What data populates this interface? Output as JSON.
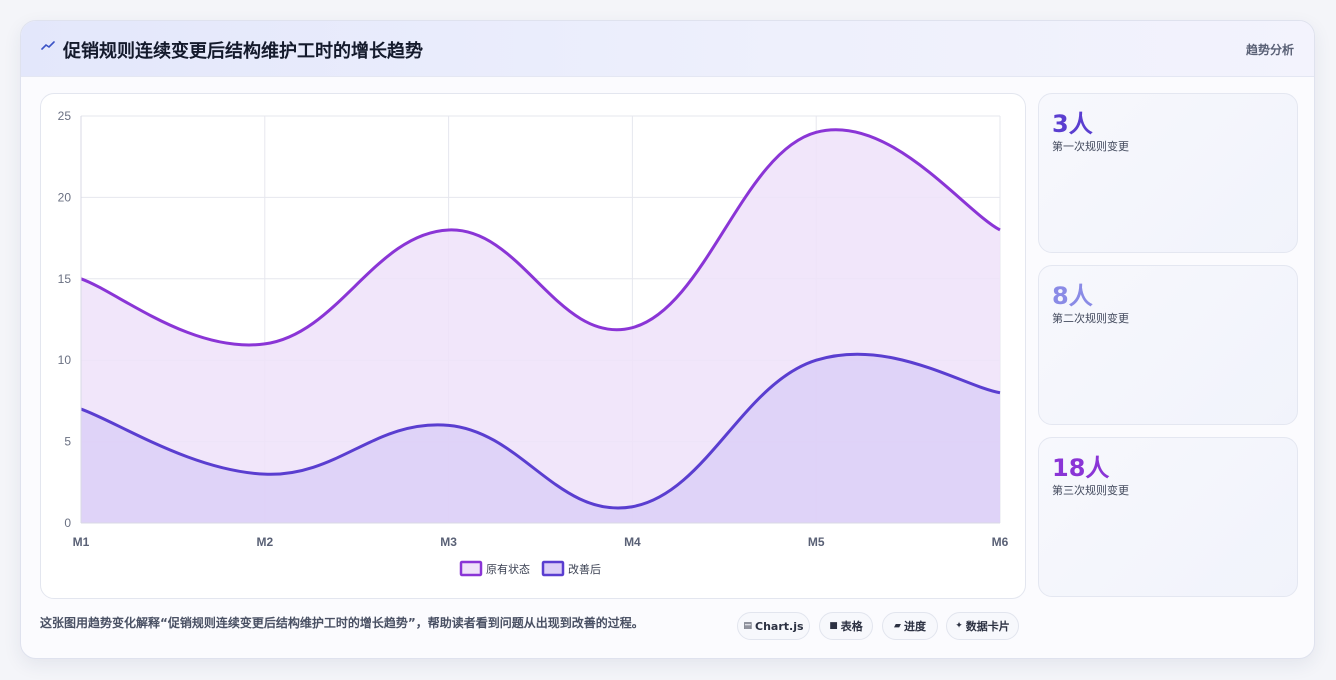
{
  "header": {
    "title": "促销规则连续变更后结构维护工时的增长趋势",
    "tag": "趋势分析",
    "icon": "trend-icon"
  },
  "chart_data": {
    "type": "area",
    "categories": [
      "M1",
      "M2",
      "M3",
      "M4",
      "M5",
      "M6"
    ],
    "series": [
      {
        "name": "原有状态",
        "values": [
          15,
          11,
          18,
          12,
          24,
          18
        ],
        "color": "#8a35d6",
        "fill": "#efe2f9"
      },
      {
        "name": "改善后",
        "values": [
          7,
          3,
          6,
          1,
          10,
          8
        ],
        "color": "#5a3ed0",
        "fill": "#dccff7"
      }
    ],
    "ylim": [
      0,
      25
    ],
    "yticks": [
      0,
      5,
      10,
      15,
      20,
      25
    ],
    "grid": true,
    "legend": "bottom"
  },
  "stats": [
    {
      "value": "3人",
      "label": "第一次规则变更",
      "color": "#5a3ed0"
    },
    {
      "value": "8人",
      "label": "第二次规则变更",
      "color": "#8a8be6"
    },
    {
      "value": "18人",
      "label": "第三次规则变更",
      "color": "#8a35d6"
    }
  ],
  "footer": {
    "text": "这张图用趋势变化解释“促销规则连续变更后结构维护工时的增长趋势”，帮助读者看到问题从出现到改善的过程。",
    "chips": [
      {
        "icon": "chart-icon",
        "glyph": "▤",
        "label": "Chart.js"
      },
      {
        "icon": "table-icon",
        "glyph": "■",
        "label": "表格"
      },
      {
        "icon": "progress-icon",
        "glyph": "▰",
        "label": "进度"
      },
      {
        "icon": "sparkle-icon",
        "glyph": "✦",
        "label": "数据卡片"
      }
    ]
  }
}
